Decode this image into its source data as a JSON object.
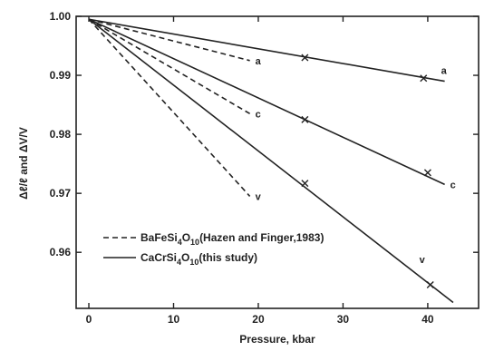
{
  "chart_data": {
    "type": "line",
    "xlabel": "Pressure, kbar",
    "ylabel": "Δℓ/ℓ and ΔV/V",
    "xlim": [
      -1.5,
      46
    ],
    "ylim": [
      0.9505,
      1.0
    ],
    "xticks": [
      "0",
      "10",
      "20",
      "30",
      "40"
    ],
    "yticks": [
      "1.00",
      "0.99",
      "0.98",
      "0.97",
      "0.96"
    ],
    "xtick_values": [
      0,
      10,
      20,
      30,
      40
    ],
    "ytick_values": [
      1.0,
      0.99,
      0.98,
      0.97,
      0.96
    ],
    "legend": {
      "placement": "lower-left",
      "entries": [
        {
          "style": "dashed",
          "formula": "BaFeSi",
          "sub1": "4",
          "mid": "O",
          "sub2": "10",
          "note": "(Hazen and Finger,1983)"
        },
        {
          "style": "solid",
          "formula": "CaCrSi",
          "sub1": "4",
          "mid": "O",
          "sub2": "10",
          "note": "(this study)"
        }
      ]
    },
    "series": [
      {
        "group": "BaFeSi4O10",
        "style": "dashed",
        "label": "a",
        "points": [
          [
            0,
            0.9995
          ],
          [
            19,
            0.9925
          ]
        ]
      },
      {
        "group": "BaFeSi4O10",
        "style": "dashed",
        "label": "c",
        "points": [
          [
            0,
            0.9995
          ],
          [
            19,
            0.9835
          ]
        ]
      },
      {
        "group": "BaFeSi4O10",
        "style": "dashed",
        "label": "v",
        "points": [
          [
            0,
            0.9995
          ],
          [
            19,
            0.9695
          ]
        ]
      },
      {
        "group": "CaCrSi4O10",
        "style": "solid",
        "label": "a",
        "points": [
          [
            0,
            0.9995
          ],
          [
            42,
            0.989
          ]
        ],
        "markers": [
          [
            25.5,
            0.993
          ],
          [
            39.5,
            0.9895
          ]
        ]
      },
      {
        "group": "CaCrSi4O10",
        "style": "solid",
        "label": "c",
        "points": [
          [
            0,
            0.9995
          ],
          [
            42,
            0.9715
          ]
        ],
        "markers": [
          [
            25.5,
            0.9825
          ],
          [
            40,
            0.9735
          ]
        ]
      },
      {
        "group": "CaCrSi4O10",
        "style": "solid",
        "label": "v",
        "points": [
          [
            0,
            0.9995
          ],
          [
            43,
            0.9515
          ]
        ],
        "markers": [
          [
            25.5,
            0.9717
          ],
          [
            40.3,
            0.9545
          ]
        ]
      }
    ]
  }
}
